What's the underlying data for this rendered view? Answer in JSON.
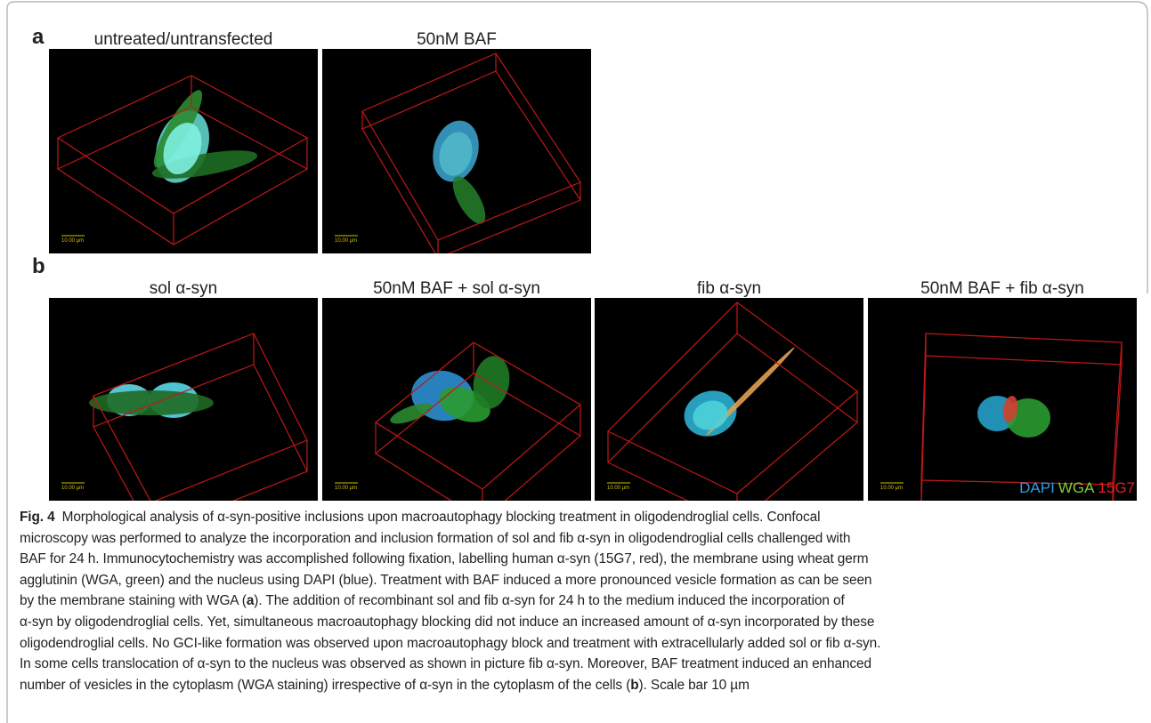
{
  "panels": [
    {
      "label": "a",
      "images": [
        {
          "title": "untreated/untransfected",
          "scale": "10.00 µm"
        },
        {
          "title": "50nM BAF",
          "scale": "10.00 µm"
        }
      ]
    },
    {
      "label": "b",
      "images": [
        {
          "title": "sol α-syn",
          "scale": "10.00 µm"
        },
        {
          "title": "50nM BAF + sol α-syn",
          "scale": "10.00 µm"
        },
        {
          "title": "fib α-syn",
          "scale": "10.00 µm"
        },
        {
          "title": "50nM BAF + fib α-syn",
          "scale": "10.00 µm"
        }
      ],
      "legend": [
        "DAPI",
        "WGA",
        "15G7"
      ]
    }
  ],
  "caption": {
    "label": "Fig. 4",
    "lines": [
      [
        "Morphological analysis of α-syn-positive inclusions upon macroautophagy blocking treatment in oligodendroglial cells. Confocal"
      ],
      [
        "microscopy was performed to analyze the incorporation and inclusion formation of sol and fib α-syn in oligodendroglial cells challenged with"
      ],
      [
        "BAF for 24 h. Immunocytochemistry was accomplished following fixation, labelling human α-syn (15G7, red), the membrane using wheat germ"
      ],
      [
        "agglutinin (WGA, green) and the nucleus using DAPI (blue). Treatment with BAF induced a more pronounced vesicle formation as can be seen"
      ],
      [
        "by the membrane staining with WGA (",
        "a",
        "). The addition of recombinant sol and fib α-syn for 24 h to the medium induced the incorporation of"
      ],
      [
        "α-syn by oligodendroglial cells. Yet, simultaneous macroautophagy blocking did not induce an increased amount of α-syn incorporated by these"
      ],
      [
        "oligodendroglial cells. No GCI-like formation was observed upon macroautophagy block and treatment with extracellularly added sol or fib α-syn."
      ],
      [
        "In some cells translocation of α-syn to the nucleus was observed as shown in picture fib α-syn. Moreover, BAF treatment induced an enhanced"
      ],
      [
        "number of vesicles in the cytoplasm (WGA staining) irrespective of α-syn in the cytoplasm of the cells (",
        "b",
        "). Scale bar 10 µm"
      ]
    ]
  }
}
